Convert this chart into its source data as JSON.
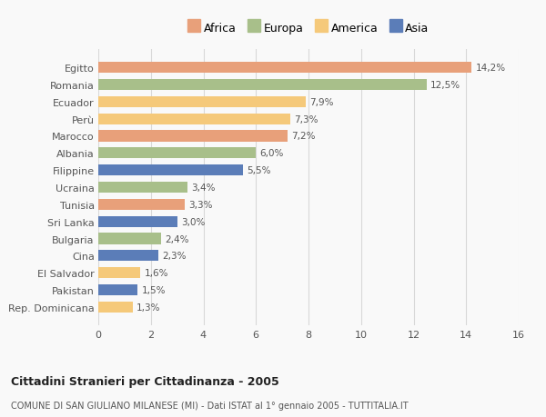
{
  "categories": [
    "Rep. Dominicana",
    "Pakistan",
    "El Salvador",
    "Cina",
    "Bulgaria",
    "Sri Lanka",
    "Tunisia",
    "Ucraina",
    "Filippine",
    "Albania",
    "Marocco",
    "Perù",
    "Ecuador",
    "Romania",
    "Egitto"
  ],
  "values": [
    1.3,
    1.5,
    1.6,
    2.3,
    2.4,
    3.0,
    3.3,
    3.4,
    5.5,
    6.0,
    7.2,
    7.3,
    7.9,
    12.5,
    14.2
  ],
  "colors": [
    "#f5c97a",
    "#5b7db8",
    "#f5c97a",
    "#5b7db8",
    "#a8bf8a",
    "#5b7db8",
    "#e8a07a",
    "#a8bf8a",
    "#5b7db8",
    "#a8bf8a",
    "#e8a07a",
    "#f5c97a",
    "#f5c97a",
    "#a8bf8a",
    "#e8a07a"
  ],
  "labels": [
    "1,3%",
    "1,5%",
    "1,6%",
    "2,3%",
    "2,4%",
    "3,0%",
    "3,3%",
    "3,4%",
    "5,5%",
    "6,0%",
    "7,2%",
    "7,3%",
    "7,9%",
    "12,5%",
    "14,2%"
  ],
  "legend_labels": [
    "Africa",
    "Europa",
    "America",
    "Asia"
  ],
  "legend_colors": [
    "#e8a07a",
    "#a8bf8a",
    "#f5c97a",
    "#5b7db8"
  ],
  "title": "Cittadini Stranieri per Cittadinanza - 2005",
  "subtitle": "COMUNE DI SAN GIULIANO MILANESE (MI) - Dati ISTAT al 1° gennaio 2005 - TUTTITALIA.IT",
  "xlim": [
    0,
    16
  ],
  "xticks": [
    0,
    2,
    4,
    6,
    8,
    10,
    12,
    14,
    16
  ],
  "background_color": "#f9f9f9",
  "bar_height": 0.65,
  "grid_color": "#d8d8d8"
}
